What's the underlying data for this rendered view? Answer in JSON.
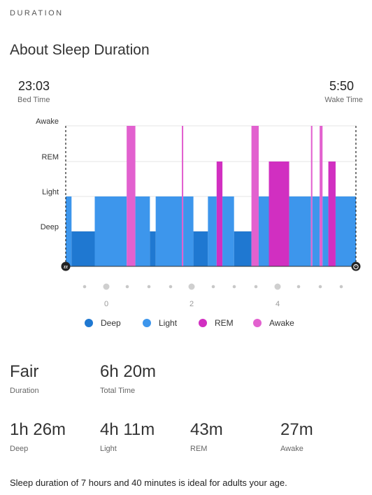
{
  "header": {
    "section_label": "DURATION",
    "title": "About Sleep Duration"
  },
  "times": {
    "bed_time": "23:03",
    "bed_label": "Bed Time",
    "wake_time": "5:50",
    "wake_label": "Wake Time"
  },
  "chart_data": {
    "type": "timeline",
    "stage_labels": [
      "Awake",
      "REM",
      "Light",
      "Deep"
    ],
    "x_tick_labels": [
      "0",
      "2",
      "4"
    ],
    "x_unit_note": "",
    "colors": {
      "deep": "#1f78d1",
      "light": "#3d96ec",
      "rem": "#d12fc1",
      "awake": "#e261cf"
    },
    "segments": [
      {
        "stage": "Light",
        "start": 0.0,
        "end": 0.02
      },
      {
        "stage": "Deep",
        "start": 0.02,
        "end": 0.1
      },
      {
        "stage": "Light",
        "start": 0.1,
        "end": 0.21
      },
      {
        "stage": "Awake",
        "start": 0.21,
        "end": 0.24
      },
      {
        "stage": "Light",
        "start": 0.24,
        "end": 0.29
      },
      {
        "stage": "Deep",
        "start": 0.29,
        "end": 0.31
      },
      {
        "stage": "Light",
        "start": 0.31,
        "end": 0.4
      },
      {
        "stage": "Awake",
        "start": 0.4,
        "end": 0.405
      },
      {
        "stage": "Light",
        "start": 0.405,
        "end": 0.44
      },
      {
        "stage": "Deep",
        "start": 0.44,
        "end": 0.49
      },
      {
        "stage": "Light",
        "start": 0.49,
        "end": 0.52
      },
      {
        "stage": "REM",
        "start": 0.52,
        "end": 0.54
      },
      {
        "stage": "Light",
        "start": 0.54,
        "end": 0.58
      },
      {
        "stage": "Deep",
        "start": 0.58,
        "end": 0.64
      },
      {
        "stage": "Awake",
        "start": 0.64,
        "end": 0.665
      },
      {
        "stage": "Light",
        "start": 0.665,
        "end": 0.7
      },
      {
        "stage": "REM",
        "start": 0.7,
        "end": 0.77
      },
      {
        "stage": "Light",
        "start": 0.77,
        "end": 0.845
      },
      {
        "stage": "Awake",
        "start": 0.845,
        "end": 0.85
      },
      {
        "stage": "Light",
        "start": 0.85,
        "end": 0.875
      },
      {
        "stage": "Awake",
        "start": 0.875,
        "end": 0.885
      },
      {
        "stage": "Light",
        "start": 0.885,
        "end": 0.905
      },
      {
        "stage": "REM",
        "start": 0.905,
        "end": 0.93
      },
      {
        "stage": "Light",
        "start": 0.93,
        "end": 1.0
      }
    ]
  },
  "legend": [
    {
      "label": "Deep",
      "color": "#1f78d1"
    },
    {
      "label": "Light",
      "color": "#3d96ec"
    },
    {
      "label": "REM",
      "color": "#d12fc1"
    },
    {
      "label": "Awake",
      "color": "#e261cf"
    }
  ],
  "summary": {
    "quality": "Fair",
    "quality_label": "Duration",
    "total_time": "6h 20m",
    "total_label": "Total Time"
  },
  "stages": {
    "deep": {
      "value": "1h 26m",
      "label": "Deep"
    },
    "light": {
      "value": "4h 11m",
      "label": "Light"
    },
    "rem": {
      "value": "43m",
      "label": "REM"
    },
    "awake": {
      "value": "27m",
      "label": "Awake"
    }
  },
  "message": "Sleep duration of 7 hours and 40 minutes is ideal for adults your age.",
  "icons": {
    "start": "sleep-zz-icon",
    "end": "alarm-clock-icon"
  }
}
